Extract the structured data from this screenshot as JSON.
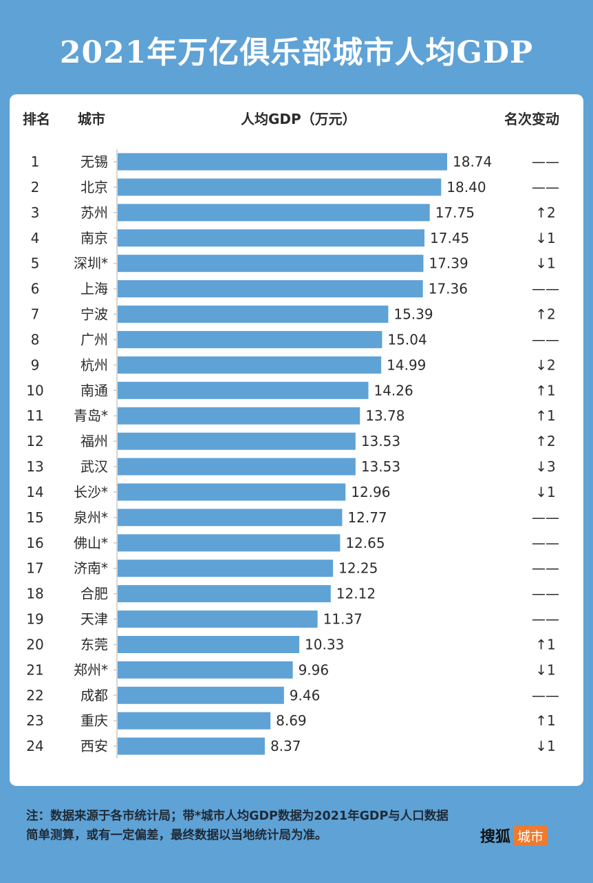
{
  "title": "2021年万亿俱乐部城市人均GDP",
  "headers": {
    "rank": "排名",
    "city": "城市",
    "value": "人均GDP（万元）",
    "change": "名次变动"
  },
  "colors": {
    "background": "#5fa2d6",
    "bar": "#5fa2d6",
    "panel": "#ffffff",
    "brand": "#f07a2e"
  },
  "chart_data": {
    "type": "bar",
    "orientation": "horizontal",
    "title": "2021年万亿俱乐部城市人均GDP",
    "xlabel": "人均GDP（万元）",
    "ylabel": "城市",
    "xlim": [
      0,
      18.74
    ],
    "grid": false,
    "ranks": [
      "1",
      "2",
      "3",
      "4",
      "5",
      "6",
      "7",
      "8",
      "9",
      "10",
      "11",
      "12",
      "13",
      "14",
      "15",
      "16",
      "17",
      "18",
      "19",
      "20",
      "21",
      "22",
      "23",
      "24"
    ],
    "categories": [
      "无锡",
      "北京",
      "苏州",
      "南京",
      "深圳*",
      "上海",
      "宁波",
      "广州",
      "杭州",
      "南通",
      "青岛*",
      "福州",
      "武汉",
      "长沙*",
      "泉州*",
      "佛山*",
      "济南*",
      "合肥",
      "天津",
      "东莞",
      "郑州*",
      "成都",
      "重庆",
      "西安"
    ],
    "values": [
      18.74,
      18.4,
      17.75,
      17.45,
      17.39,
      17.36,
      15.39,
      15.04,
      14.99,
      14.26,
      13.78,
      13.53,
      13.53,
      12.96,
      12.77,
      12.65,
      12.25,
      12.12,
      11.37,
      10.33,
      9.96,
      9.46,
      8.69,
      8.37
    ],
    "value_labels": [
      "18.74",
      "18.40",
      "17.75",
      "17.45",
      "17.39",
      "17.36",
      "15.39",
      "15.04",
      "14.99",
      "14.26",
      "13.78",
      "13.53",
      "13.53",
      "12.96",
      "12.77",
      "12.65",
      "12.25",
      "12.12",
      "11.37",
      "10.33",
      "9.96",
      "9.46",
      "8.69",
      "8.37"
    ],
    "rank_changes": [
      "——",
      "——",
      "↑2",
      "↓1",
      "↓1",
      "——",
      "↑2",
      "——",
      "↓2",
      "↑1",
      "↑1",
      "↑2",
      "↓3",
      "↓1",
      "——",
      "——",
      "——",
      "——",
      "——",
      "↑1",
      "↓1",
      "——",
      "↑1",
      "↓1"
    ]
  },
  "footnote": "注：数据来源于各市统计局；带*城市人均GDP数据为2021年GDP与人口数据简单测算，或有一定偏差，最终数据以当地统计局为准。",
  "brand": {
    "name": "搜狐",
    "tag": "城市"
  }
}
